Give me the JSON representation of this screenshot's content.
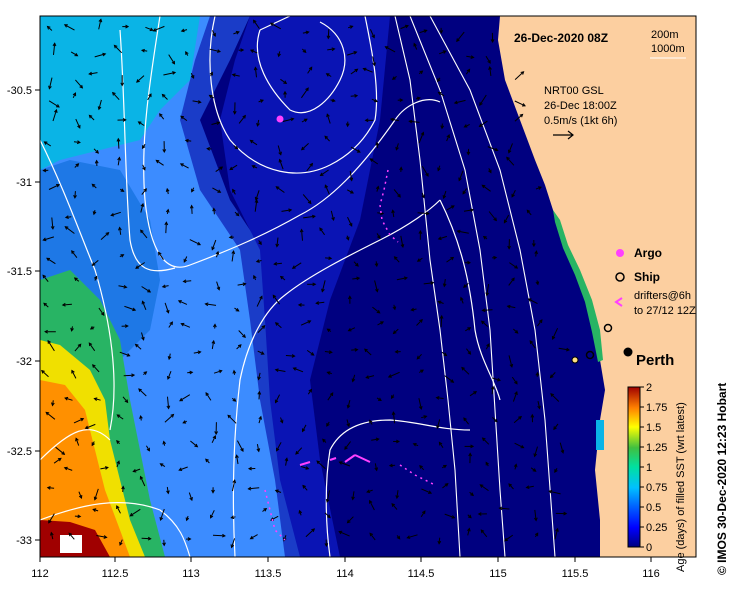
{
  "map": {
    "date_title": "26-Dec-2020 08Z",
    "depth_contours": [
      "200m",
      "1000m"
    ],
    "current_note": [
      "NRT00 GSL",
      "26-Dec 18:00Z",
      "0.5m/s (1kt 6h)"
    ],
    "city_label": "Perth",
    "legend": {
      "argo": "Argo",
      "ship": "Ship",
      "drifters_line1": "drifters@6h",
      "drifters_line2": "to 27/12 12Z"
    },
    "colorbar": {
      "title": "Age (days) of filled SST (wrt latest)",
      "ticks": [
        "2",
        "1.75",
        "1.5",
        "1.25",
        "1",
        "0.75",
        "0.5",
        "0.25",
        "0"
      ],
      "colors": [
        "#000080",
        "#0000ff",
        "#0080ff",
        "#00c0ff",
        "#00ffc0",
        "#40c040",
        "#ffff00",
        "#ff8000",
        "#a00000"
      ]
    },
    "credit": "© IMOS 30-Dec-2020 12:23 Hobart",
    "x_ticks": [
      "112",
      "112.5",
      "113",
      "113.5",
      "114",
      "114.5",
      "115",
      "115.5",
      "116"
    ],
    "y_ticks": [
      "-30.5",
      "-31",
      "-31.5",
      "-32",
      "-32.5",
      "-33"
    ],
    "colors": {
      "deep_ocean": "#000080",
      "ocean_blue": "#1a3cc8",
      "ocean_light": "#3c8cff",
      "cyan": "#0ab4e6",
      "land": "#fccfa0",
      "argo_magenta": "#ff40ff"
    }
  }
}
